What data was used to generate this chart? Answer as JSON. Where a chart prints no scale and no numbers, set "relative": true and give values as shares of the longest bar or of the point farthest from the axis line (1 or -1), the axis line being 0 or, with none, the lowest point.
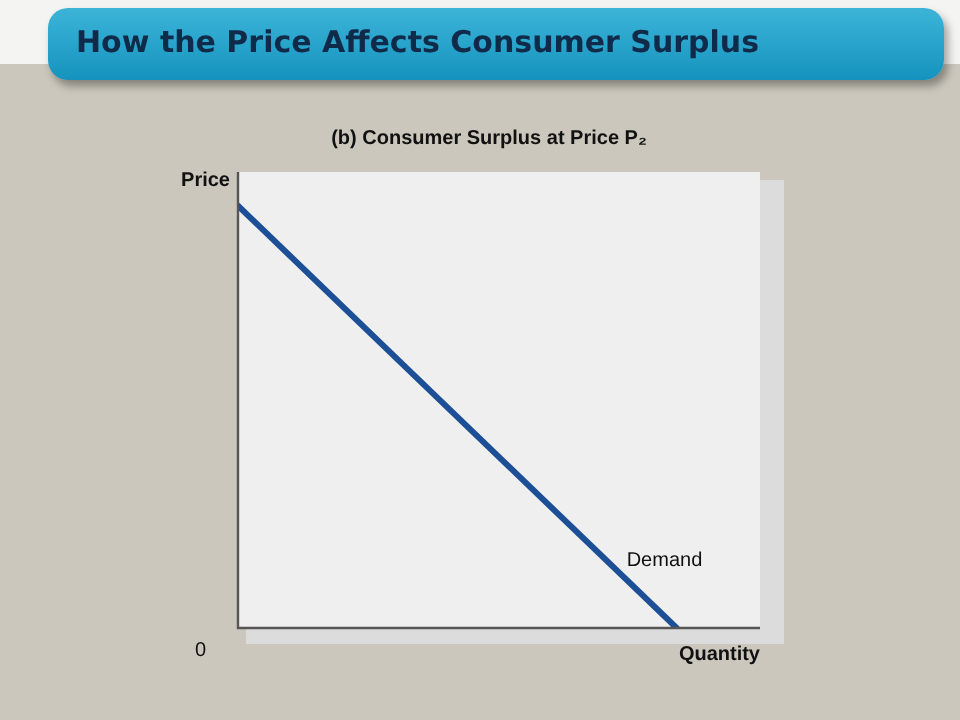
{
  "chart_data": {
    "type": "line",
    "title": "How the Price Affects Consumer Surplus",
    "subtitle": "(b) Consumer Surplus at Price P₂",
    "xlabel": "Quantity",
    "ylabel": "Price",
    "relative": true,
    "categories": [
      null,
      null
    ],
    "series": [
      {
        "color": "#1c4f96",
        "values": [
          1,
          0
        ]
      }
    ],
    "annotations": [
      "Demand",
      "0"
    ],
    "legend": false,
    "marker": "none",
    "line_style": "solid"
  }
}
